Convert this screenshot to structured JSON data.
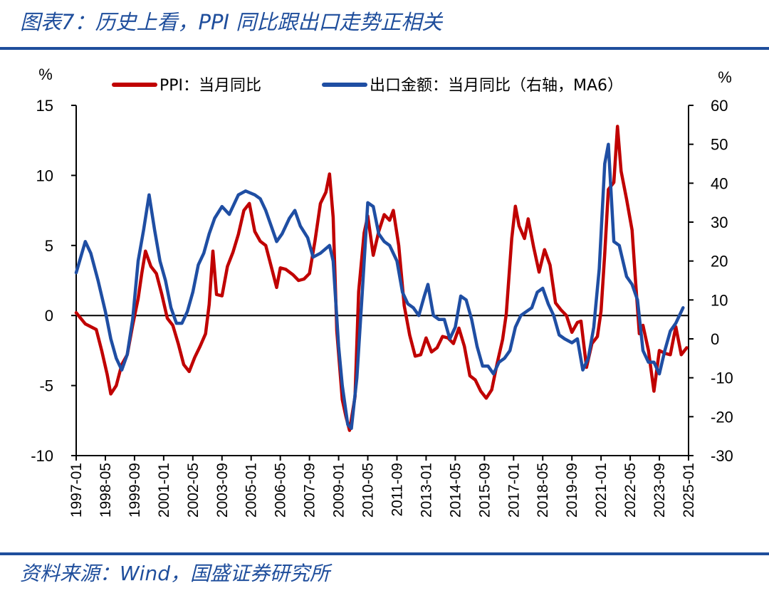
{
  "figure": {
    "title": "图表7：历史上看，PPI 同比跟出口走势正相关",
    "source": "资料来源：Wind，国盛证券研究所"
  },
  "colors": {
    "ppi": "#c00000",
    "export": "#1f4ea3",
    "accent": "#1f4e9c"
  },
  "chart_data": {
    "type": "line",
    "title": "",
    "y_left": {
      "unit": "%",
      "lim": [
        -10,
        15
      ],
      "ticks": [
        -10,
        -5,
        0,
        5,
        10,
        15
      ]
    },
    "y_right": {
      "unit": "%",
      "lim": [
        -30,
        60
      ],
      "ticks": [
        -30,
        -20,
        -10,
        0,
        10,
        20,
        30,
        40,
        50,
        60
      ]
    },
    "x_ticks": [
      "1997-01",
      "1998-05",
      "1999-09",
      "2001-01",
      "2002-05",
      "2003-09",
      "2005-01",
      "2006-05",
      "2007-09",
      "2009-01",
      "2010-05",
      "2011-09",
      "2013-01",
      "2014-05",
      "2015-09",
      "2017-01",
      "2018-05",
      "2019-09",
      "2021-01",
      "2022-05",
      "2023-09",
      "2025-01"
    ],
    "x_range": [
      "1997-01",
      "2025-01"
    ],
    "legend_position": "top",
    "series": [
      {
        "name": "PPI：当月同比",
        "axis": "left",
        "points": [
          [
            "1997-01",
            0.2
          ],
          [
            "1997-06",
            -0.6
          ],
          [
            "1997-12",
            -1.0
          ],
          [
            "1998-03",
            -2.5
          ],
          [
            "1998-06",
            -4.2
          ],
          [
            "1998-08",
            -5.6
          ],
          [
            "1998-11",
            -5.0
          ],
          [
            "1999-02",
            -3.5
          ],
          [
            "1999-05",
            -2.8
          ],
          [
            "1999-08",
            -0.7
          ],
          [
            "1999-11",
            1.2
          ],
          [
            "2000-01",
            3.0
          ],
          [
            "2000-03",
            4.6
          ],
          [
            "2000-06",
            3.5
          ],
          [
            "2000-09",
            3.0
          ],
          [
            "2000-12",
            1.5
          ],
          [
            "2001-03",
            -0.2
          ],
          [
            "2001-06",
            -0.7
          ],
          [
            "2001-09",
            -2.0
          ],
          [
            "2001-12",
            -3.5
          ],
          [
            "2002-03",
            -4.0
          ],
          [
            "2002-06",
            -3.0
          ],
          [
            "2002-09",
            -2.2
          ],
          [
            "2002-12",
            -1.3
          ],
          [
            "2003-02",
            0.8
          ],
          [
            "2003-04",
            4.6
          ],
          [
            "2003-06",
            1.5
          ],
          [
            "2003-09",
            1.4
          ],
          [
            "2003-12",
            3.5
          ],
          [
            "2004-03",
            4.5
          ],
          [
            "2004-06",
            5.8
          ],
          [
            "2004-09",
            7.5
          ],
          [
            "2004-12",
            8.0
          ],
          [
            "2005-03",
            6.0
          ],
          [
            "2005-06",
            5.3
          ],
          [
            "2005-09",
            5.0
          ],
          [
            "2005-12",
            3.5
          ],
          [
            "2006-03",
            2.0
          ],
          [
            "2006-05",
            3.4
          ],
          [
            "2006-08",
            3.3
          ],
          [
            "2006-12",
            2.9
          ],
          [
            "2007-03",
            2.5
          ],
          [
            "2007-06",
            2.6
          ],
          [
            "2007-09",
            3.0
          ],
          [
            "2007-12",
            5.3
          ],
          [
            "2008-03",
            8.0
          ],
          [
            "2008-06",
            8.8
          ],
          [
            "2008-08",
            10.1
          ],
          [
            "2008-10",
            7.0
          ],
          [
            "2008-12",
            -1.1
          ],
          [
            "2009-03",
            -6.0
          ],
          [
            "2009-05",
            -7.2
          ],
          [
            "2009-07",
            -8.2
          ],
          [
            "2009-10",
            -5.8
          ],
          [
            "2009-12",
            1.7
          ],
          [
            "2010-03",
            5.9
          ],
          [
            "2010-05",
            7.1
          ],
          [
            "2010-08",
            4.3
          ],
          [
            "2010-11",
            6.0
          ],
          [
            "2011-02",
            7.2
          ],
          [
            "2011-05",
            6.8
          ],
          [
            "2011-07",
            7.5
          ],
          [
            "2011-10",
            5.0
          ],
          [
            "2012-01",
            0.7
          ],
          [
            "2012-04",
            -1.4
          ],
          [
            "2012-07",
            -2.9
          ],
          [
            "2012-10",
            -2.8
          ],
          [
            "2013-01",
            -1.6
          ],
          [
            "2013-04",
            -2.6
          ],
          [
            "2013-07",
            -2.3
          ],
          [
            "2013-10",
            -1.5
          ],
          [
            "2014-01",
            -1.6
          ],
          [
            "2014-04",
            -2.0
          ],
          [
            "2014-07",
            -0.9
          ],
          [
            "2014-10",
            -2.2
          ],
          [
            "2015-01",
            -4.3
          ],
          [
            "2015-04",
            -4.6
          ],
          [
            "2015-07",
            -5.4
          ],
          [
            "2015-10",
            -5.9
          ],
          [
            "2016-01",
            -5.3
          ],
          [
            "2016-04",
            -3.4
          ],
          [
            "2016-07",
            -1.7
          ],
          [
            "2016-09",
            0.1
          ],
          [
            "2016-12",
            5.5
          ],
          [
            "2017-02",
            7.8
          ],
          [
            "2017-04",
            6.4
          ],
          [
            "2017-07",
            5.5
          ],
          [
            "2017-09",
            6.9
          ],
          [
            "2017-12",
            4.9
          ],
          [
            "2018-03",
            3.1
          ],
          [
            "2018-06",
            4.7
          ],
          [
            "2018-09",
            3.6
          ],
          [
            "2018-12",
            0.9
          ],
          [
            "2019-03",
            0.4
          ],
          [
            "2019-06",
            0.0
          ],
          [
            "2019-09",
            -1.2
          ],
          [
            "2019-12",
            -0.5
          ],
          [
            "2020-02",
            -0.4
          ],
          [
            "2020-05",
            -3.7
          ],
          [
            "2020-08",
            -2.0
          ],
          [
            "2020-11",
            -1.5
          ],
          [
            "2021-01",
            0.3
          ],
          [
            "2021-03",
            4.4
          ],
          [
            "2021-05",
            9.0
          ],
          [
            "2021-08",
            9.5
          ],
          [
            "2021-10",
            13.5
          ],
          [
            "2021-12",
            10.3
          ],
          [
            "2022-03",
            8.3
          ],
          [
            "2022-06",
            6.1
          ],
          [
            "2022-08",
            2.3
          ],
          [
            "2022-10",
            -1.3
          ],
          [
            "2022-12",
            -0.7
          ],
          [
            "2023-03",
            -2.5
          ],
          [
            "2023-06",
            -5.4
          ],
          [
            "2023-09",
            -2.5
          ],
          [
            "2023-12",
            -2.7
          ],
          [
            "2024-03",
            -2.8
          ],
          [
            "2024-06",
            -0.8
          ],
          [
            "2024-09",
            -2.8
          ],
          [
            "2024-12",
            -2.3
          ]
        ]
      },
      {
        "name": "出口金额：当月同比（右轴，MA6）",
        "axis": "right",
        "points": [
          [
            "1997-01",
            17.0
          ],
          [
            "1997-06",
            25.0
          ],
          [
            "1997-09",
            22.0
          ],
          [
            "1998-01",
            15.0
          ],
          [
            "1998-05",
            7.0
          ],
          [
            "1998-08",
            0.0
          ],
          [
            "1998-11",
            -5.0
          ],
          [
            "1999-02",
            -8.0
          ],
          [
            "1999-05",
            -4.0
          ],
          [
            "1999-08",
            5.0
          ],
          [
            "1999-11",
            20.0
          ],
          [
            "2000-02",
            28.0
          ],
          [
            "2000-05",
            37.0
          ],
          [
            "2000-08",
            28.0
          ],
          [
            "2000-11",
            20.0
          ],
          [
            "2001-02",
            15.0
          ],
          [
            "2001-05",
            8.0
          ],
          [
            "2001-08",
            4.0
          ],
          [
            "2001-11",
            4.0
          ],
          [
            "2002-02",
            7.0
          ],
          [
            "2002-05",
            12.0
          ],
          [
            "2002-08",
            19.0
          ],
          [
            "2002-11",
            22.0
          ],
          [
            "2003-02",
            27.0
          ],
          [
            "2003-05",
            31.0
          ],
          [
            "2003-09",
            34.0
          ],
          [
            "2004-01",
            32.0
          ],
          [
            "2004-06",
            37.0
          ],
          [
            "2004-10",
            38.0
          ],
          [
            "2005-03",
            37.0
          ],
          [
            "2005-06",
            36.0
          ],
          [
            "2005-09",
            33.0
          ],
          [
            "2005-12",
            29.0
          ],
          [
            "2006-03",
            25.0
          ],
          [
            "2006-06",
            27.0
          ],
          [
            "2006-10",
            31.0
          ],
          [
            "2007-01",
            33.0
          ],
          [
            "2007-04",
            29.0
          ],
          [
            "2007-08",
            26.0
          ],
          [
            "2007-11",
            21.0
          ],
          [
            "2008-03",
            22.0
          ],
          [
            "2008-08",
            24.0
          ],
          [
            "2008-10",
            20.0
          ],
          [
            "2009-01",
            -2.0
          ],
          [
            "2009-03",
            -12.0
          ],
          [
            "2009-06",
            -22.0
          ],
          [
            "2009-08",
            -23.0
          ],
          [
            "2009-11",
            -10.0
          ],
          [
            "2010-02",
            12.0
          ],
          [
            "2010-05",
            35.0
          ],
          [
            "2010-08",
            34.0
          ],
          [
            "2010-11",
            27.0
          ],
          [
            "2011-02",
            25.0
          ],
          [
            "2011-05",
            24.0
          ],
          [
            "2011-09",
            20.0
          ],
          [
            "2011-12",
            12.0
          ],
          [
            "2012-03",
            9.0
          ],
          [
            "2012-06",
            8.0
          ],
          [
            "2012-09",
            6.0
          ],
          [
            "2012-12",
            11.0
          ],
          [
            "2013-02",
            14.0
          ],
          [
            "2013-05",
            6.0
          ],
          [
            "2013-08",
            5.0
          ],
          [
            "2013-11",
            5.0
          ],
          [
            "2014-02",
            0.0
          ],
          [
            "2014-05",
            3.0
          ],
          [
            "2014-08",
            11.0
          ],
          [
            "2014-11",
            10.0
          ],
          [
            "2015-02",
            5.0
          ],
          [
            "2015-05",
            -2.0
          ],
          [
            "2015-08",
            -7.0
          ],
          [
            "2015-11",
            -7.0
          ],
          [
            "2016-02",
            -9.0
          ],
          [
            "2016-05",
            -6.0
          ],
          [
            "2016-08",
            -5.0
          ],
          [
            "2016-11",
            -3.0
          ],
          [
            "2017-02",
            3.0
          ],
          [
            "2017-05",
            6.0
          ],
          [
            "2017-08",
            7.0
          ],
          [
            "2017-11",
            8.0
          ],
          [
            "2018-02",
            12.0
          ],
          [
            "2018-05",
            13.0
          ],
          [
            "2018-08",
            9.0
          ],
          [
            "2018-11",
            6.0
          ],
          [
            "2019-02",
            1.0
          ],
          [
            "2019-05",
            0.0
          ],
          [
            "2019-09",
            -1.0
          ],
          [
            "2019-12",
            0.0
          ],
          [
            "2020-03",
            -8.0
          ],
          [
            "2020-06",
            -5.0
          ],
          [
            "2020-09",
            3.0
          ],
          [
            "2020-12",
            18.0
          ],
          [
            "2021-03",
            45.0
          ],
          [
            "2021-05",
            50.0
          ],
          [
            "2021-08",
            25.0
          ],
          [
            "2021-11",
            24.0
          ],
          [
            "2022-03",
            16.0
          ],
          [
            "2022-06",
            14.0
          ],
          [
            "2022-09",
            10.0
          ],
          [
            "2022-12",
            -3.0
          ],
          [
            "2023-03",
            -6.0
          ],
          [
            "2023-06",
            -6.0
          ],
          [
            "2023-09",
            -9.0
          ],
          [
            "2023-12",
            -3.0
          ],
          [
            "2024-03",
            2.0
          ],
          [
            "2024-06",
            4.0
          ],
          [
            "2024-09",
            7.0
          ],
          [
            "2024-10",
            8.0
          ]
        ]
      }
    ]
  }
}
